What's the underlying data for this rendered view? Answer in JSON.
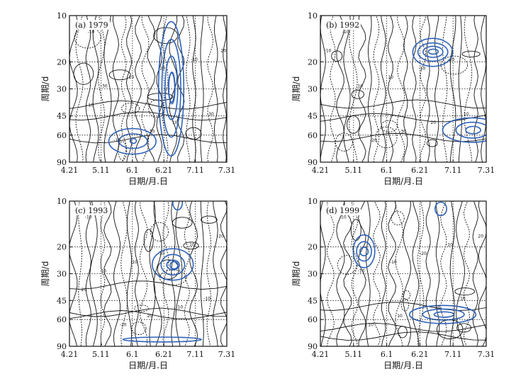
{
  "chart_data": [
    {
      "type": "contour",
      "panel_label": "(a) 1979",
      "xlabel": "日期/月.日",
      "ylabel": "周期/d",
      "x_ticks": [
        "4.21",
        "5.11",
        "6.1",
        "6.21",
        "7.11",
        "7.31"
      ],
      "y_ticks": [
        "10",
        "20",
        "30",
        "45",
        "60",
        "90"
      ],
      "y_scale": "log",
      "ylim": [
        10,
        90
      ],
      "grid": true,
      "contour_labels": [
        "-10",
        "-30",
        "-10",
        "10",
        "30",
        "-20",
        "10",
        "-10",
        "-30",
        "20",
        "-10"
      ],
      "highlight_color": "#2e62b8",
      "highlight_regions": [
        {
          "x_center": "6.21",
          "period_range": [
            10,
            14
          ]
        },
        {
          "x_center": "6.11",
          "period_range": [
            30,
            55
          ]
        }
      ]
    },
    {
      "type": "contour",
      "panel_label": "(b) 1992",
      "xlabel": "日期/月.日",
      "ylabel": "周期/d",
      "x_ticks": [
        "4.21",
        "5.11",
        "6.1",
        "6.21",
        "7.11",
        "7.31"
      ],
      "y_ticks": [
        "10",
        "20",
        "30",
        "45",
        "60",
        "90"
      ],
      "y_scale": "log",
      "ylim": [
        10,
        90
      ],
      "grid": true,
      "contour_labels": [
        "-10",
        "10",
        "-20",
        "10",
        "-30",
        "-10",
        "20",
        "-20",
        "10",
        "-10"
      ],
      "highlight_color": "#2e62b8",
      "highlight_regions": [
        {
          "x_center": "6.21",
          "period_range": [
            18,
            28
          ]
        },
        {
          "x_center": "7.6",
          "period_range": [
            42,
            65
          ]
        }
      ]
    },
    {
      "type": "contour",
      "panel_label": "(c) 1993",
      "xlabel": "日期/月.日",
      "ylabel": "周期/d",
      "x_ticks": [
        "4.21",
        "5.11",
        "6.1",
        "6.21",
        "7.11",
        "7.31"
      ],
      "y_ticks": [
        "10",
        "20",
        "30",
        "45",
        "60",
        "90"
      ],
      "y_scale": "log",
      "ylim": [
        10,
        90
      ],
      "grid": true,
      "contour_labels": [
        "-10",
        "10",
        "-20",
        "-10",
        "20",
        "30",
        "-10",
        "10",
        "-10",
        "-20",
        "20"
      ],
      "highlight_color": "#2e62b8",
      "highlight_regions": [
        {
          "x_center": "6.21",
          "period_range": [
            10,
            12
          ]
        },
        {
          "x_center": "6.16",
          "period_range": [
            17,
            34
          ]
        },
        {
          "x_center": "6.16",
          "period_range": [
            83,
            90
          ]
        }
      ]
    },
    {
      "type": "contour",
      "panel_label": "(d) 1999",
      "xlabel": "日期/月.日",
      "ylabel": "周期/d",
      "x_ticks": [
        "4.21",
        "5.11",
        "6.1",
        "6.21",
        "7.11",
        "7.31"
      ],
      "y_ticks": [
        "10",
        "20",
        "30",
        "45",
        "60",
        "90"
      ],
      "y_scale": "log",
      "ylim": [
        10,
        90
      ],
      "grid": true,
      "contour_labels": [
        "-10",
        "-10",
        "10",
        "-10",
        "10",
        "-20",
        "10",
        "-10",
        "10",
        "20"
      ],
      "highlight_color": "#2e62b8",
      "highlight_regions": [
        {
          "x_center": "6.26",
          "period_range": [
            10,
            13
          ]
        },
        {
          "x_center": "5.11",
          "period_range": [
            16,
            27
          ]
        },
        {
          "x_center": "6.26",
          "period_range": [
            45,
            66
          ]
        }
      ]
    }
  ]
}
